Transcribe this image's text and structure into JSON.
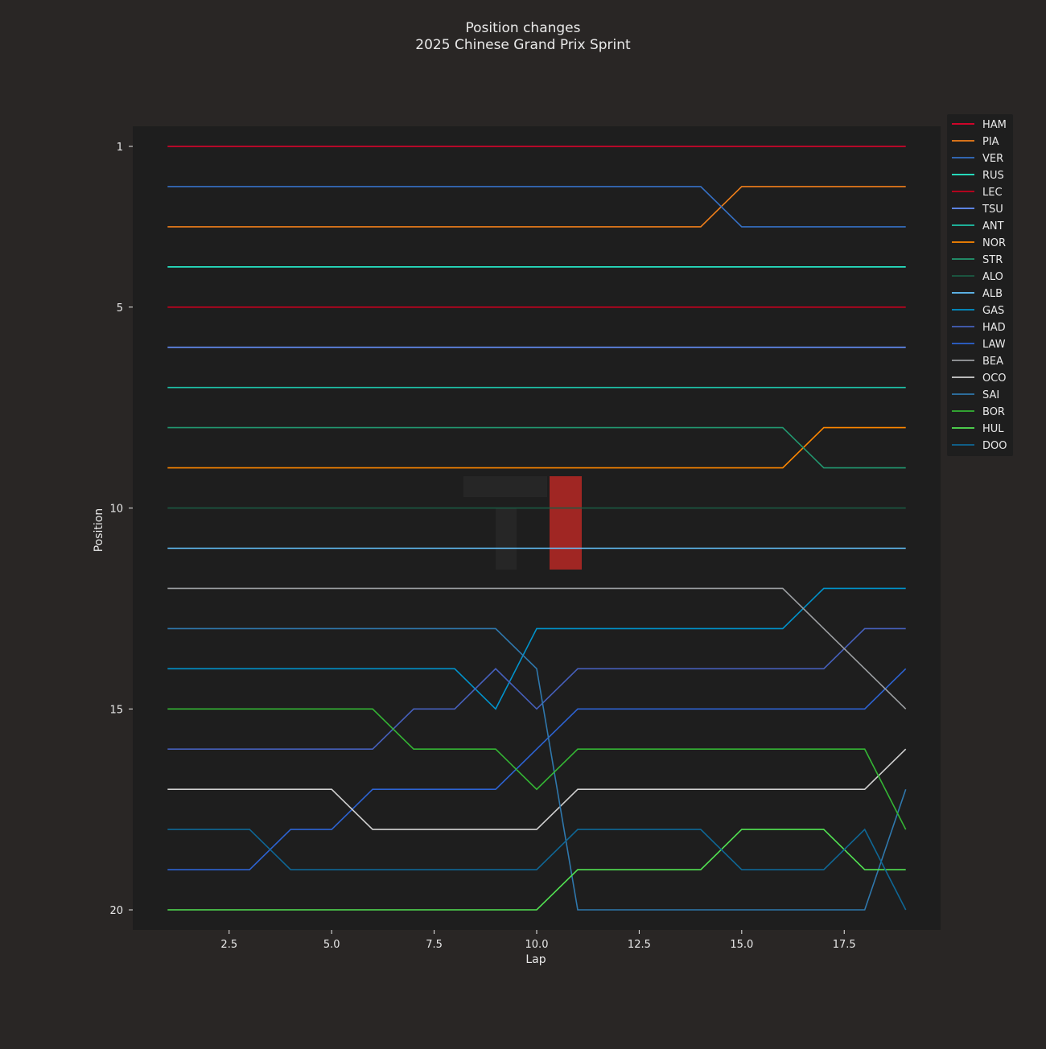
{
  "colors": {
    "figure_bg": "#292625",
    "plot_bg": "#1e1e1e",
    "text": "#e9e9e9",
    "axis": "#3a3836"
  },
  "chart_data": {
    "type": "line",
    "title": "Position changes",
    "subtitle": "2025 Chinese Grand Prix Sprint",
    "xlabel": "Lap",
    "ylabel": "Position",
    "xlim": [
      0.15,
      19.85
    ],
    "ylim": [
      20.5,
      0.5
    ],
    "y_inverted": true,
    "xticks": [
      2.5,
      5.0,
      7.5,
      10.0,
      12.5,
      15.0,
      17.5
    ],
    "xtick_labels": [
      "2.5",
      "5.0",
      "7.5",
      "10.0",
      "12.5",
      "15.0",
      "17.5"
    ],
    "yticks": [
      1,
      5,
      10,
      15,
      20
    ],
    "ytick_labels": [
      "1",
      "5",
      "10",
      "15",
      "20"
    ],
    "grid": false,
    "legend_position": "outside-top-right",
    "x": [
      1,
      2,
      3,
      4,
      5,
      6,
      7,
      8,
      9,
      10,
      11,
      12,
      13,
      14,
      15,
      16,
      17,
      18,
      19
    ],
    "series": [
      {
        "name": "HAM",
        "color": "#e8002d",
        "values": [
          1,
          1,
          1,
          1,
          1,
          1,
          1,
          1,
          1,
          1,
          1,
          1,
          1,
          1,
          1,
          1,
          1,
          1,
          1
        ]
      },
      {
        "name": "PIA",
        "color": "#f07f1a",
        "values": [
          3,
          3,
          3,
          3,
          3,
          3,
          3,
          3,
          3,
          3,
          3,
          3,
          3,
          3,
          2,
          2,
          2,
          2,
          2
        ]
      },
      {
        "name": "VER",
        "color": "#3671c6",
        "values": [
          2,
          2,
          2,
          2,
          2,
          2,
          2,
          2,
          2,
          2,
          2,
          2,
          2,
          2,
          3,
          3,
          3,
          3,
          3
        ]
      },
      {
        "name": "RUS",
        "color": "#27f4d2",
        "values": [
          4,
          4,
          4,
          4,
          4,
          4,
          4,
          4,
          4,
          4,
          4,
          4,
          4,
          4,
          4,
          4,
          4,
          4,
          4
        ]
      },
      {
        "name": "LEC",
        "color": "#c8001e",
        "values": [
          5,
          5,
          5,
          5,
          5,
          5,
          5,
          5,
          5,
          5,
          5,
          5,
          5,
          5,
          5,
          5,
          5,
          5,
          5
        ]
      },
      {
        "name": "TSU",
        "color": "#6692ff",
        "values": [
          6,
          6,
          6,
          6,
          6,
          6,
          6,
          6,
          6,
          6,
          6,
          6,
          6,
          6,
          6,
          6,
          6,
          6,
          6
        ]
      },
      {
        "name": "ANT",
        "color": "#1ec4aa",
        "values": [
          7,
          7,
          7,
          7,
          7,
          7,
          7,
          7,
          7,
          7,
          7,
          7,
          7,
          7,
          7,
          7,
          7,
          7,
          7
        ]
      },
      {
        "name": "NOR",
        "color": "#ff8700",
        "values": [
          9,
          9,
          9,
          9,
          9,
          9,
          9,
          9,
          9,
          9,
          9,
          9,
          9,
          9,
          9,
          9,
          8,
          8,
          8
        ]
      },
      {
        "name": "STR",
        "color": "#229971",
        "values": [
          8,
          8,
          8,
          8,
          8,
          8,
          8,
          8,
          8,
          8,
          8,
          8,
          8,
          8,
          8,
          8,
          9,
          9,
          9
        ]
      },
      {
        "name": "ALO",
        "color": "#1b5c44",
        "values": [
          10,
          10,
          10,
          10,
          10,
          10,
          10,
          10,
          10,
          10,
          10,
          10,
          10,
          10,
          10,
          10,
          10,
          10,
          10
        ]
      },
      {
        "name": "ALB",
        "color": "#64c4ff",
        "values": [
          11,
          11,
          11,
          11,
          11,
          11,
          11,
          11,
          11,
          11,
          11,
          11,
          11,
          11,
          11,
          11,
          11,
          11,
          11
        ]
      },
      {
        "name": "GAS",
        "color": "#0093cc",
        "values": [
          14,
          14,
          14,
          14,
          14,
          14,
          14,
          14,
          15,
          13,
          13,
          13,
          13,
          13,
          13,
          13,
          12,
          12,
          12
        ]
      },
      {
        "name": "HAD",
        "color": "#4660bc",
        "values": [
          16,
          16,
          16,
          16,
          16,
          16,
          15,
          15,
          14,
          15,
          14,
          14,
          14,
          14,
          14,
          14,
          14,
          13,
          13
        ]
      },
      {
        "name": "LAW",
        "color": "#2d63d2",
        "values": [
          19,
          19,
          19,
          18,
          18,
          17,
          17,
          17,
          17,
          16,
          15,
          15,
          15,
          15,
          15,
          15,
          15,
          15,
          14
        ]
      },
      {
        "name": "BEA",
        "color": "#9c9fa2",
        "values": [
          12,
          12,
          12,
          12,
          12,
          12,
          12,
          12,
          12,
          12,
          12,
          12,
          12,
          12,
          12,
          12,
          13,
          14,
          15
        ]
      },
      {
        "name": "OCO",
        "color": "#d0d0d0",
        "values": [
          17,
          17,
          17,
          17,
          17,
          18,
          18,
          18,
          18,
          18,
          17,
          17,
          17,
          17,
          17,
          17,
          17,
          17,
          16
        ]
      },
      {
        "name": "SAI",
        "color": "#2f78ad",
        "values": [
          13,
          13,
          13,
          13,
          13,
          13,
          13,
          13,
          13,
          14,
          20,
          20,
          20,
          20,
          20,
          20,
          20,
          20,
          17
        ]
      },
      {
        "name": "BOR",
        "color": "#34b534",
        "values": [
          15,
          15,
          15,
          15,
          15,
          15,
          16,
          16,
          16,
          17,
          16,
          16,
          16,
          16,
          16,
          16,
          16,
          16,
          18
        ]
      },
      {
        "name": "HUL",
        "color": "#52e252",
        "values": [
          20,
          20,
          20,
          20,
          20,
          20,
          20,
          20,
          20,
          20,
          19,
          19,
          19,
          19,
          18,
          18,
          18,
          19,
          19
        ]
      },
      {
        "name": "DOO",
        "color": "#0f6795",
        "values": [
          18,
          18,
          18,
          19,
          19,
          19,
          19,
          19,
          19,
          19,
          18,
          18,
          18,
          18,
          19,
          19,
          19,
          18,
          20
        ]
      }
    ]
  }
}
